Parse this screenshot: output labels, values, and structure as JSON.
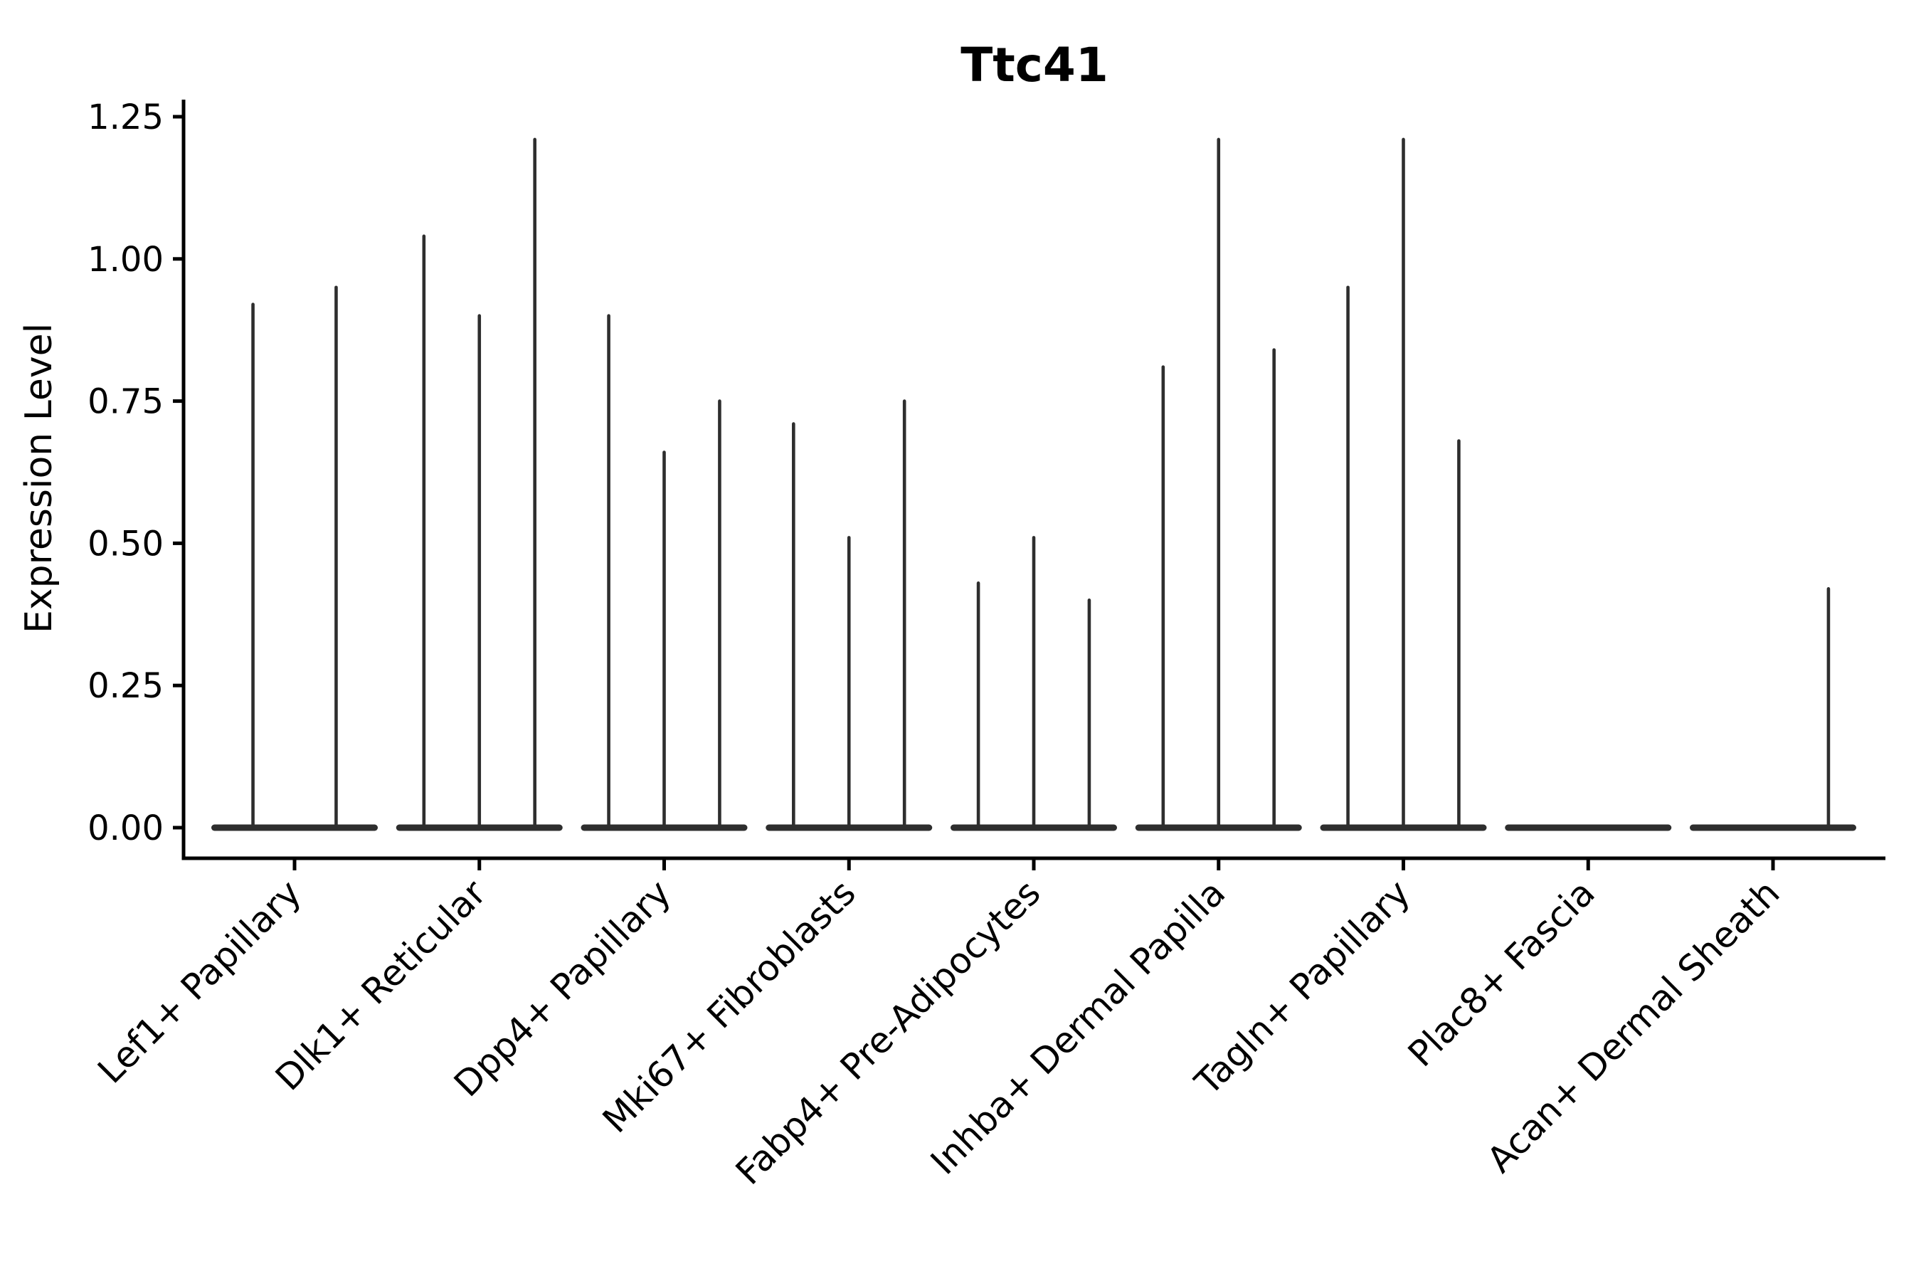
{
  "chart_data": {
    "type": "violin",
    "title": "Ttc41",
    "xlabel": "",
    "ylabel": "Expression Level",
    "ylim": [
      0,
      1.25
    ],
    "ytick_values": [
      0,
      0.25,
      0.5,
      0.75,
      1.0,
      1.25
    ],
    "ytick_labels": [
      "0.00",
      "0.25",
      "0.50",
      "0.75",
      "1.00",
      "1.25"
    ],
    "grid": false,
    "legend_position": "none",
    "line_color": "#2e2e2e",
    "axis_color": "#000000",
    "background_color": "#ffffff",
    "categories": [
      "Lef1+ Papillary",
      "Dlk1+ Reticular",
      "Dpp4+ Papillary",
      "Mki67+ Fibroblasts",
      "Fabp4+ Pre-Adipocytes",
      "Inhba+ Dermal Papilla",
      "Tagln+ Papillary",
      "Plac8+ Fascia",
      "Acan+ Dermal Sheath"
    ],
    "group_band_halfwidth": 0.45,
    "note": "Violins collapse to a flat band at expression 0 with thin spikes reaching the max expression value; offsets are dodge positions within each category; max is spike top in Expression Level units",
    "groups": [
      {
        "category": "Lef1+ Papillary",
        "violins": [
          {
            "offset": -0.225,
            "max": 0.92
          },
          {
            "offset": 0.225,
            "max": 0.95
          }
        ]
      },
      {
        "category": "Dlk1+ Reticular",
        "violins": [
          {
            "offset": -0.3,
            "max": 1.04
          },
          {
            "offset": 0,
            "max": 0.9
          },
          {
            "offset": 0.3,
            "max": 1.21
          }
        ]
      },
      {
        "category": "Dpp4+ Papillary",
        "violins": [
          {
            "offset": -0.3,
            "max": 0.9
          },
          {
            "offset": 0,
            "max": 0.66
          },
          {
            "offset": 0.3,
            "max": 0.75
          }
        ]
      },
      {
        "category": "Mki67+ Fibroblasts",
        "violins": [
          {
            "offset": -0.3,
            "max": 0.71
          },
          {
            "offset": 0,
            "max": 0.51
          },
          {
            "offset": 0.3,
            "max": 0.75
          }
        ]
      },
      {
        "category": "Fabp4+ Pre-Adipocytes",
        "violins": [
          {
            "offset": -0.3,
            "max": 0.43
          },
          {
            "offset": 0,
            "max": 0.51
          },
          {
            "offset": 0.3,
            "max": 0.4
          }
        ]
      },
      {
        "category": "Inhba+ Dermal Papilla",
        "violins": [
          {
            "offset": -0.3,
            "max": 0.81
          },
          {
            "offset": 0,
            "max": 1.21
          },
          {
            "offset": 0.3,
            "max": 0.84
          }
        ]
      },
      {
        "category": "Tagln+ Papillary",
        "violins": [
          {
            "offset": -0.3,
            "max": 0.95
          },
          {
            "offset": 0,
            "max": 1.21
          },
          {
            "offset": 0.3,
            "max": 0.68
          }
        ]
      },
      {
        "category": "Plac8+ Fascia",
        "violins": []
      },
      {
        "category": "Acan+ Dermal Sheath",
        "violins": [
          {
            "offset": 0.3,
            "max": 0.42
          }
        ]
      }
    ]
  }
}
